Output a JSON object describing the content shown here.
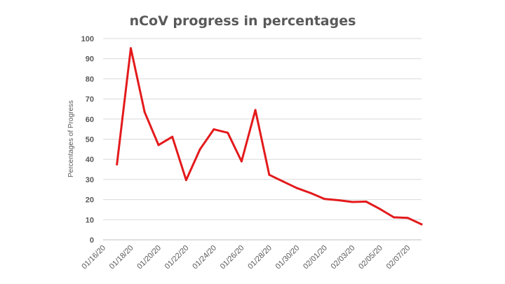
{
  "chart_data": {
    "type": "line",
    "title": "nCoV progress in percentages",
    "xlabel": "",
    "ylabel": "Percentages of Progress",
    "ylim": [
      0,
      100
    ],
    "yticks": [
      0,
      10,
      20,
      30,
      40,
      50,
      60,
      70,
      80,
      90,
      100
    ],
    "xlim": [
      "01/16/20",
      "02/08/20"
    ],
    "xticks": [
      "01/16/20",
      "01/18/20",
      "01/20/20",
      "01/22/20",
      "01/24/20",
      "01/26/20",
      "01/28/20",
      "01/30/20",
      "02/01/20",
      "02/03/20",
      "02/05/20",
      "02/07/20"
    ],
    "grid": true,
    "legend": "none",
    "colors": {
      "line": "#e31a1c"
    },
    "series": [
      {
        "x": [
          "01/17/20",
          "01/18/20",
          "01/19/20",
          "01/20/20",
          "01/21/20",
          "01/22/20",
          "01/23/20",
          "01/24/20",
          "01/25/20",
          "01/26/20",
          "01/27/20",
          "01/28/20",
          "01/29/20",
          "01/30/20",
          "01/31/20",
          "02/01/20",
          "02/02/20",
          "02/03/20",
          "02/04/20",
          "02/05/20",
          "02/06/20",
          "02/07/20",
          "02/08/20"
        ],
        "values": [
          37.5,
          95.2,
          63.5,
          47.1,
          51.2,
          29.7,
          45.0,
          54.9,
          53.2,
          39.0,
          64.5,
          32.3,
          29.0,
          25.7,
          23.2,
          20.3,
          19.7,
          18.8,
          19.0,
          15.3,
          11.2,
          10.9,
          7.7
        ]
      }
    ]
  }
}
